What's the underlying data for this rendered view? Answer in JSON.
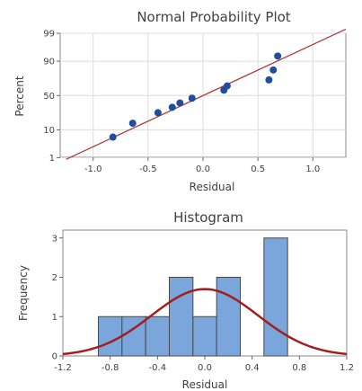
{
  "chart_data": [
    {
      "type": "scatter",
      "title": "Normal Probability Plot",
      "xlabel": "Residual",
      "ylabel": "Percent",
      "xlim": [
        -1.3,
        1.3
      ],
      "yscale": "normal-probability",
      "ylim": [
        1,
        99
      ],
      "xticks": [
        "-1.0",
        "-0.5",
        "0.0",
        "0.5",
        "1.0"
      ],
      "xtick_values": [
        -1.0,
        -0.5,
        0.0,
        0.5,
        1.0
      ],
      "yticks": [
        "1",
        "10",
        "50",
        "90",
        "99"
      ],
      "ytick_values": [
        1,
        10,
        50,
        90,
        99
      ],
      "grid": true,
      "points": [
        {
          "x": -0.82,
          "y": 6
        },
        {
          "x": -0.64,
          "y": 15
        },
        {
          "x": -0.41,
          "y": 26
        },
        {
          "x": -0.28,
          "y": 33
        },
        {
          "x": -0.21,
          "y": 39
        },
        {
          "x": -0.1,
          "y": 46
        },
        {
          "x": 0.19,
          "y": 58
        },
        {
          "x": 0.22,
          "y": 64
        },
        {
          "x": 0.6,
          "y": 72
        },
        {
          "x": 0.64,
          "y": 83
        },
        {
          "x": 0.68,
          "y": 93
        }
      ],
      "fit_line": {
        "x": [
          -1.18,
          1.22
        ],
        "y": [
          1.2,
          99
        ]
      },
      "point_color": "#1f4e9c",
      "line_color": "#b23b3b"
    },
    {
      "type": "bar",
      "title": "Histogram",
      "xlabel": "Residual",
      "ylabel": "Frequency",
      "xlim": [
        -1.2,
        1.2
      ],
      "ylim": [
        0,
        3.2
      ],
      "xticks": [
        "-1.2",
        "-0.8",
        "-0.4",
        "0.0",
        "0.4",
        "0.8",
        "1.2"
      ],
      "xtick_values": [
        -1.2,
        -0.8,
        -0.4,
        0.0,
        0.4,
        0.8,
        1.2
      ],
      "yticks": [
        "0",
        "1",
        "2",
        "3"
      ],
      "ytick_values": [
        0,
        1,
        2,
        3
      ],
      "bins": [
        {
          "left": -0.9,
          "right": -0.7,
          "count": 1
        },
        {
          "left": -0.7,
          "right": -0.5,
          "count": 1
        },
        {
          "left": -0.5,
          "right": -0.3,
          "count": 1
        },
        {
          "left": -0.3,
          "right": -0.1,
          "count": 2
        },
        {
          "left": -0.1,
          "right": 0.1,
          "count": 1
        },
        {
          "left": 0.1,
          "right": 0.3,
          "count": 2
        },
        {
          "left": 0.5,
          "right": 0.7,
          "count": 3
        }
      ],
      "normal_curve": {
        "mean": 0.0,
        "sd": 0.45,
        "peak": 1.7
      },
      "bar_color": "#7aa6dc",
      "bar_edge": "#4a4a4a",
      "curve_color": "#a31f1f"
    }
  ]
}
